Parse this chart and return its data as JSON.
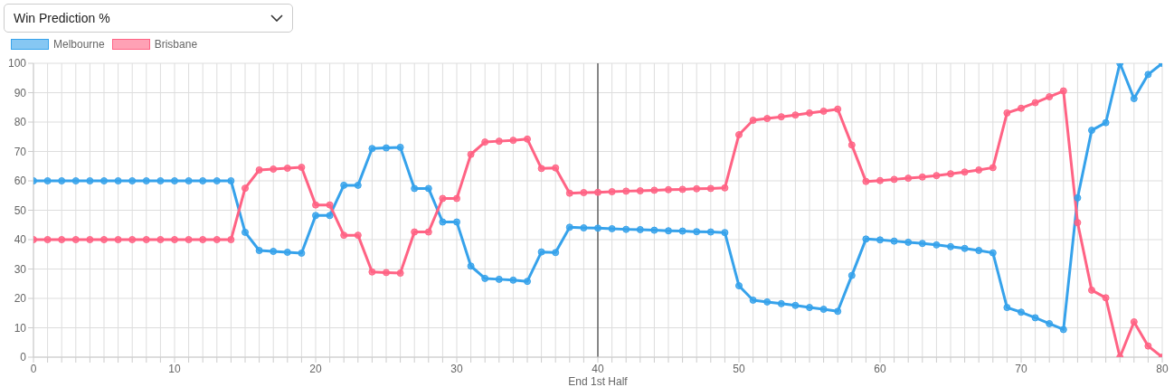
{
  "chart_data": {
    "type": "line",
    "title": "Win Prediction %",
    "x": [
      0,
      1,
      2,
      3,
      4,
      5,
      6,
      7,
      8,
      9,
      10,
      11,
      12,
      13,
      14,
      15,
      16,
      17,
      18,
      19,
      20,
      21,
      22,
      23,
      24,
      25,
      26,
      27,
      28,
      29,
      30,
      31,
      32,
      33,
      34,
      35,
      36,
      37,
      38,
      39,
      40,
      41,
      42,
      43,
      44,
      45,
      46,
      47,
      48,
      49,
      50,
      51,
      52,
      53,
      54,
      55,
      56,
      57,
      58,
      59,
      60,
      61,
      62,
      63,
      64,
      65,
      66,
      67,
      68,
      69,
      70,
      71,
      72,
      73,
      74,
      75,
      76,
      77,
      78,
      79,
      80
    ],
    "series": [
      {
        "name": "Melbourne",
        "color": "#36a2eb",
        "values": [
          60,
          60,
          60,
          60,
          60,
          60,
          60,
          60,
          60,
          60,
          60,
          60,
          60,
          60,
          60,
          42.5,
          36.3,
          36,
          35.7,
          35.4,
          48.2,
          48.2,
          58.5,
          58.5,
          71,
          71.2,
          71.4,
          57.4,
          57.4,
          46,
          46,
          31,
          26.8,
          26.5,
          26.2,
          25.8,
          35.8,
          35.6,
          44.2,
          44,
          43.9,
          43.7,
          43.5,
          43.4,
          43.2,
          43,
          42.9,
          42.7,
          42.6,
          42.4,
          24.3,
          19.4,
          18.8,
          18.2,
          17.6,
          16.9,
          16.3,
          15.6,
          27.8,
          40.2,
          39.9,
          39.5,
          39.1,
          38.7,
          38.2,
          37.6,
          37,
          36.3,
          35.5,
          16.9,
          15.3,
          13.4,
          11.4,
          9.4,
          54.2,
          77.2,
          79.8,
          100,
          88,
          96.2,
          100
        ]
      },
      {
        "name": "Brisbane",
        "color": "#ff6384",
        "values": [
          40,
          40,
          40,
          40,
          40,
          40,
          40,
          40,
          40,
          40,
          40,
          40,
          40,
          40,
          40,
          57.5,
          63.7,
          64,
          64.3,
          64.6,
          51.8,
          51.8,
          41.5,
          41.5,
          29,
          28.8,
          28.6,
          42.6,
          42.6,
          54,
          54,
          69,
          73.2,
          73.5,
          73.8,
          74.2,
          64.2,
          64.4,
          55.8,
          56,
          56.1,
          56.3,
          56.5,
          56.6,
          56.8,
          57,
          57.1,
          57.3,
          57.4,
          57.6,
          75.7,
          80.6,
          81.2,
          81.8,
          82.4,
          83.1,
          83.7,
          84.4,
          72.2,
          59.8,
          60.1,
          60.5,
          60.9,
          61.3,
          61.8,
          62.4,
          63,
          63.7,
          64.5,
          83.1,
          84.7,
          86.6,
          88.6,
          90.6,
          45.8,
          22.8,
          20.2,
          0,
          12,
          3.8,
          0
        ]
      }
    ],
    "xlim": [
      0,
      80
    ],
    "xticks": [
      0,
      {
        "value": 1,
        "label": null
      },
      {
        "value": 2,
        "label": null
      },
      {
        "value": 3,
        "label": null
      },
      {
        "value": 4,
        "label": null
      },
      {
        "value": 5,
        "label": null
      },
      {
        "value": 6,
        "label": null
      },
      {
        "value": 7,
        "label": null
      },
      {
        "value": 8,
        "label": null
      },
      {
        "value": 9,
        "label": null
      },
      10,
      {
        "value": 11,
        "label": null
      },
      {
        "value": 12,
        "label": null
      },
      {
        "value": 13,
        "label": null
      },
      {
        "value": 14,
        "label": null
      },
      {
        "value": 15,
        "label": null
      },
      {
        "value": 16,
        "label": null
      },
      {
        "value": 17,
        "label": null
      },
      {
        "value": 18,
        "label": null
      },
      {
        "value": 19,
        "label": null
      },
      20,
      {
        "value": 21,
        "label": null
      },
      {
        "value": 22,
        "label": null
      },
      {
        "value": 23,
        "label": null
      },
      {
        "value": 24,
        "label": null
      },
      {
        "value": 25,
        "label": null
      },
      {
        "value": 26,
        "label": null
      },
      {
        "value": 27,
        "label": null
      },
      {
        "value": 28,
        "label": null
      },
      {
        "value": 29,
        "label": null
      },
      30,
      {
        "value": 31,
        "label": null
      },
      {
        "value": 32,
        "label": null
      },
      {
        "value": 33,
        "label": null
      },
      {
        "value": 34,
        "label": null
      },
      {
        "value": 35,
        "label": null
      },
      {
        "value": 36,
        "label": null
      },
      {
        "value": 37,
        "label": null
      },
      {
        "value": 38,
        "label": null
      },
      {
        "value": 39,
        "label": null
      },
      40,
      {
        "value": 41,
        "label": null
      },
      {
        "value": 42,
        "label": null
      },
      {
        "value": 43,
        "label": null
      },
      {
        "value": 44,
        "label": null
      },
      {
        "value": 45,
        "label": null
      },
      {
        "value": 46,
        "label": null
      },
      {
        "value": 47,
        "label": null
      },
      {
        "value": 48,
        "label": null
      },
      {
        "value": 49,
        "label": null
      },
      50,
      {
        "value": 51,
        "label": null
      },
      {
        "value": 52,
        "label": null
      },
      {
        "value": 53,
        "label": null
      },
      {
        "value": 54,
        "label": null
      },
      {
        "value": 55,
        "label": null
      },
      {
        "value": 56,
        "label": null
      },
      {
        "value": 57,
        "label": null
      },
      {
        "value": 58,
        "label": null
      },
      {
        "value": 59,
        "label": null
      },
      60,
      {
        "value": 61,
        "label": null
      },
      {
        "value": 62,
        "label": null
      },
      {
        "value": 63,
        "label": null
      },
      {
        "value": 64,
        "label": null
      },
      {
        "value": 65,
        "label": null
      },
      {
        "value": 66,
        "label": null
      },
      {
        "value": 67,
        "label": null
      },
      {
        "value": 68,
        "label": null
      },
      {
        "value": 69,
        "label": null
      },
      70,
      {
        "value": 71,
        "label": null
      },
      {
        "value": 72,
        "label": null
      },
      {
        "value": 73,
        "label": null
      },
      {
        "value": 74,
        "label": null
      },
      {
        "value": 75,
        "label": null
      },
      {
        "value": 76,
        "label": null
      },
      {
        "value": 77,
        "label": null
      },
      {
        "value": 78,
        "label": null
      },
      {
        "value": 79,
        "label": null
      },
      80
    ],
    "ylim": [
      0,
      100
    ],
    "yticks": [
      0,
      10,
      20,
      30,
      40,
      50,
      60,
      70,
      80,
      90,
      100
    ],
    "ref_lines": [
      {
        "axis": "x",
        "value": 40,
        "label": "End 1st Half",
        "color": "#444444"
      }
    ],
    "grid": true,
    "legend": "top left",
    "marker": "circle",
    "line_style": "solid"
  }
}
